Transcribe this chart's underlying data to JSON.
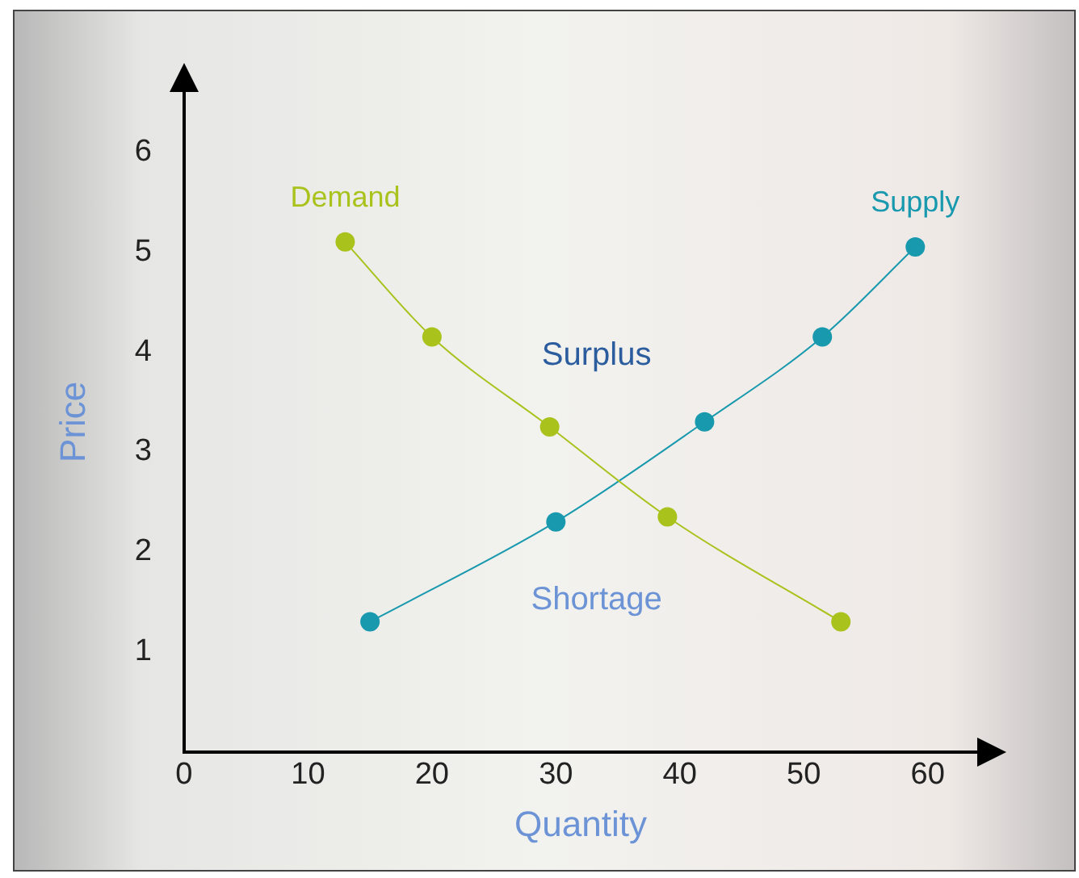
{
  "chart_data": {
    "type": "line",
    "xlabel": "Quantity",
    "ylabel": "Price",
    "xlim": [
      0,
      64
    ],
    "xticks": [
      0,
      10,
      20,
      30,
      40,
      50,
      60
    ],
    "ylim": [
      0,
      6.6
    ],
    "yticks": [
      1,
      2,
      3,
      4,
      5,
      6
    ],
    "grid": false,
    "legend": false,
    "marker": "circle",
    "series": [
      {
        "name": "Demand",
        "color": "#a9c21c",
        "x": [
          13,
          20,
          29.5,
          39,
          53
        ],
        "values": [
          5.1,
          4.15,
          3.25,
          2.35,
          1.3
        ]
      },
      {
        "name": "Supply",
        "color": "#1899ae",
        "x": [
          15,
          30,
          42,
          51.5,
          59
        ],
        "values": [
          1.3,
          2.3,
          3.3,
          4.15,
          5.05
        ]
      }
    ],
    "annotations": [
      "Surplus",
      "Shortage"
    ]
  }
}
